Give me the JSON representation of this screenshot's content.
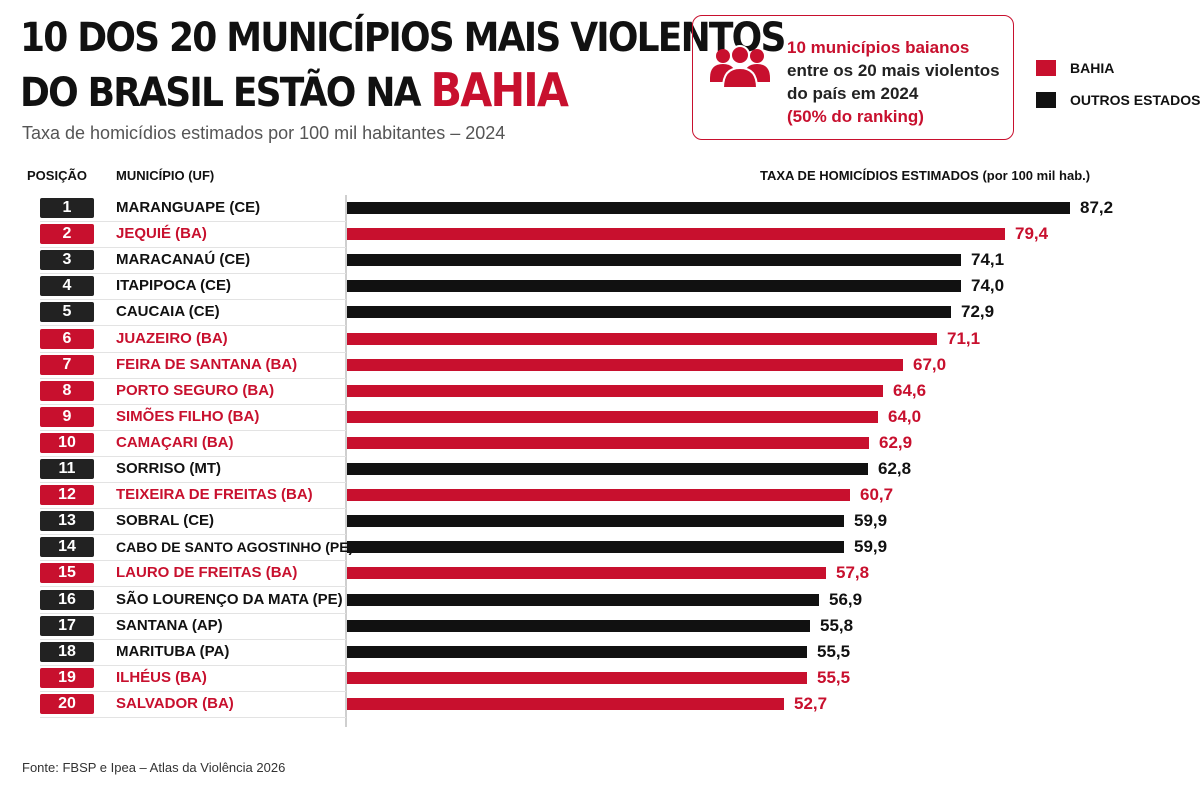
{
  "header": {
    "title_line1": "10 DOS 20 MUNICÍPIOS MAIS VIOLENTOS",
    "title_line2_prefix": "DO BRASIL ESTÃO NA",
    "title_line2_accent": "BAHIA",
    "subtitle": "Taxa de homicídios estimados por 100 mil habitantes – 2024"
  },
  "callout": {
    "icon": "people-group-icon",
    "line1": "10 municípios baianos",
    "line2": "entre os 20 mais violentos",
    "line3": "do país em 2024",
    "line4": "(50% do ranking)"
  },
  "legend": {
    "bahia": "BAHIA",
    "others": "OUTROS ESTADOS"
  },
  "colors": {
    "bahia": "#c8102e",
    "others": "#111111",
    "text": "#111111"
  },
  "columns": {
    "position": "POSIÇÃO",
    "municipality": "MUNICÍPIO (UF)",
    "rate": "TAXA DE HOMICÍDIOS ESTIMADOS (por 100 mil hab.)"
  },
  "chart_data": {
    "type": "bar",
    "orientation": "horizontal",
    "xlim": [
      0,
      87.2
    ],
    "grid": false,
    "legend_position": "top-right",
    "rows": [
      {
        "rank": "1",
        "municipality": "MARANGUAPE (CE)",
        "value": 87.2,
        "value_label": "87,2",
        "group": "others"
      },
      {
        "rank": "2",
        "municipality": "JEQUIÉ (BA)",
        "value": 79.4,
        "value_label": "79,4",
        "group": "bahia"
      },
      {
        "rank": "3",
        "municipality": "MARACANAÚ (CE)",
        "value": 74.1,
        "value_label": "74,1",
        "group": "others"
      },
      {
        "rank": "4",
        "municipality": "ITAPIPOCA (CE)",
        "value": 74.0,
        "value_label": "74,0",
        "group": "others"
      },
      {
        "rank": "5",
        "municipality": "CAUCAIA (CE)",
        "value": 72.9,
        "value_label": "72,9",
        "group": "others"
      },
      {
        "rank": "6",
        "municipality": "JUAZEIRO (BA)",
        "value": 71.1,
        "value_label": "71,1",
        "group": "bahia"
      },
      {
        "rank": "7",
        "municipality": "FEIRA DE SANTANA (BA)",
        "value": 67.0,
        "value_label": "67,0",
        "group": "bahia"
      },
      {
        "rank": "8",
        "municipality": "PORTO SEGURO (BA)",
        "value": 64.6,
        "value_label": "64,6",
        "group": "bahia"
      },
      {
        "rank": "9",
        "municipality": "SIMÕES FILHO (BA)",
        "value": 64.0,
        "value_label": "64,0",
        "group": "bahia"
      },
      {
        "rank": "10",
        "municipality": "CAMAÇARI (BA)",
        "value": 62.9,
        "value_label": "62,9",
        "group": "bahia"
      },
      {
        "rank": "11",
        "municipality": "SORRISO (MT)",
        "value": 62.8,
        "value_label": "62,8",
        "group": "others"
      },
      {
        "rank": "12",
        "municipality": "TEIXEIRA DE FREITAS (BA)",
        "value": 60.7,
        "value_label": "60,7",
        "group": "bahia"
      },
      {
        "rank": "13",
        "municipality": "SOBRAL (CE)",
        "value": 59.9,
        "value_label": "59,9",
        "group": "others"
      },
      {
        "rank": "14",
        "municipality": "CABO DE SANTO AGOSTINHO (PE)",
        "value": 59.9,
        "value_label": "59,9",
        "group": "others"
      },
      {
        "rank": "15",
        "municipality": "LAURO DE FREITAS (BA)",
        "value": 57.8,
        "value_label": "57,8",
        "group": "bahia"
      },
      {
        "rank": "16",
        "municipality": "SÃO LOURENÇO DA MATA (PE)",
        "value": 56.9,
        "value_label": "56,9",
        "group": "others"
      },
      {
        "rank": "17",
        "municipality": "SANTANA (AP)",
        "value": 55.8,
        "value_label": "55,8",
        "group": "others"
      },
      {
        "rank": "18",
        "municipality": "MARITUBA (PA)",
        "value": 55.5,
        "value_label": "55,5",
        "group": "others"
      },
      {
        "rank": "19",
        "municipality": "ILHÉUS (BA)",
        "value": 55.5,
        "value_label": "55,5",
        "group": "bahia"
      },
      {
        "rank": "20",
        "municipality": "SALVADOR (BA)",
        "value": 52.7,
        "value_label": "52,7",
        "group": "bahia"
      }
    ]
  },
  "footer": {
    "source": "Fonte: FBSP e Ipea – Atlas da Violência 2026"
  }
}
